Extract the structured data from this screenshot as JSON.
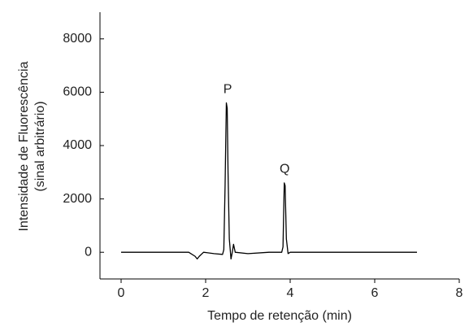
{
  "chart_data": {
    "type": "line",
    "xlabel": "Tempo de retenção (min)",
    "ylabel": [
      "Intensidade de Fluorescência",
      "(sinal arbitrário)"
    ],
    "x": [
      0,
      1.6,
      1.75,
      1.8,
      1.85,
      1.95,
      2.2,
      2.4,
      2.43,
      2.46,
      2.49,
      2.51,
      2.53,
      2.56,
      2.6,
      2.63,
      2.66,
      2.7,
      3.0,
      3.5,
      3.8,
      3.83,
      3.86,
      3.88,
      3.91,
      3.95,
      4.0,
      7.0
    ],
    "series": [
      {
        "color": "#000000",
        "values": [
          0,
          0,
          -150,
          -250,
          -150,
          0,
          -50,
          -80,
          100,
          2500,
          5600,
          5400,
          3000,
          500,
          -250,
          0,
          300,
          0,
          -50,
          0,
          0,
          200,
          2600,
          2500,
          500,
          -50,
          0,
          0
        ]
      }
    ],
    "annotations": [
      {
        "text": "P",
        "x": 2.52,
        "y": 6100
      },
      {
        "text": "Q",
        "x": 3.87,
        "y": 3100
      }
    ],
    "xlim": [
      -0.5,
      8
    ],
    "xticks": [
      0,
      2,
      4,
      6,
      8
    ],
    "ylim": [
      -1000,
      9000
    ],
    "yticks": [
      0,
      2000,
      4000,
      6000,
      8000
    ]
  }
}
